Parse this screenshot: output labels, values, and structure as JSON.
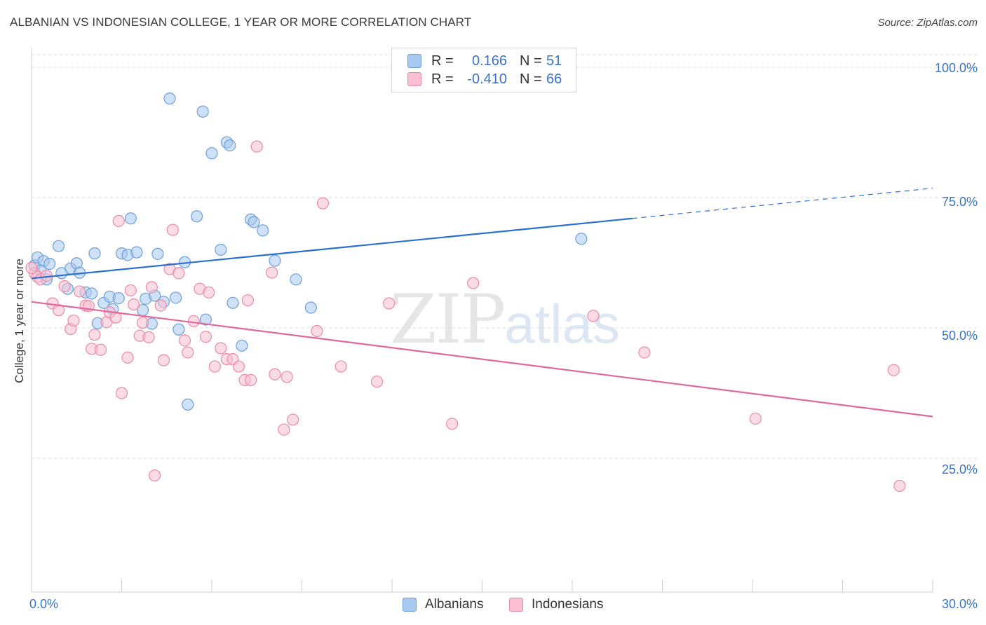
{
  "title": "ALBANIAN VS INDONESIAN COLLEGE, 1 YEAR OR MORE CORRELATION CHART",
  "source": "Source: ZipAtlas.com",
  "watermark": {
    "zip": "ZIP",
    "atlas": "atlas"
  },
  "legend_top": {
    "rows": [
      {
        "r_label": "R =",
        "r_value": "0.166",
        "n_label": "N =",
        "n_value": "51",
        "color": "#a8c8ef",
        "border": "#6f9fd8"
      },
      {
        "r_label": "R =",
        "r_value": "-0.410",
        "n_label": "N =",
        "n_value": "66",
        "color": "#f7bfd0",
        "border": "#e98aa8"
      }
    ]
  },
  "legend_bottom": [
    {
      "label": "Albanians",
      "color": "#a8c8ef",
      "border": "#6f9fd8"
    },
    {
      "label": "Indonesians",
      "color": "#f7bfd0",
      "border": "#e98aa8"
    }
  ],
  "chart_data": {
    "type": "scatter",
    "title": "ALBANIAN VS INDONESIAN COLLEGE, 1 YEAR OR MORE CORRELATION CHART",
    "ylabel": "College, 1 year or more",
    "xlabel": "",
    "xlim": [
      0,
      30
    ],
    "ylim": [
      0,
      105
    ],
    "x_tick_labels": [
      "0.0%",
      "30.0%"
    ],
    "y_ticks": [
      25,
      50,
      75,
      100
    ],
    "y_tick_labels": [
      "25.0%",
      "50.0%",
      "75.0%",
      "100.0%"
    ],
    "grid": true,
    "series": [
      {
        "name": "Albanians",
        "color": "#6f9fd8",
        "fill": "#a8c8ef",
        "trend_color": "#2b6fcf",
        "trend": {
          "x0": 0,
          "y0": 59.5,
          "x1": 20,
          "y1": 71,
          "x_ext": 30,
          "y_ext": 76.8
        },
        "points": [
          [
            0.1,
            62.0
          ],
          [
            0.2,
            63.5
          ],
          [
            0.4,
            62.8
          ],
          [
            0.5,
            59.3
          ],
          [
            0.6,
            62.3
          ],
          [
            0.9,
            65.7
          ],
          [
            1.0,
            60.5
          ],
          [
            1.2,
            57.5
          ],
          [
            1.3,
            61.4
          ],
          [
            1.5,
            62.4
          ],
          [
            1.6,
            60.6
          ],
          [
            1.8,
            56.8
          ],
          [
            2.0,
            56.6
          ],
          [
            2.1,
            64.3
          ],
          [
            2.2,
            50.9
          ],
          [
            2.4,
            54.8
          ],
          [
            2.6,
            56.0
          ],
          [
            2.7,
            53.6
          ],
          [
            2.9,
            55.7
          ],
          [
            3.0,
            64.3
          ],
          [
            3.2,
            64.0
          ],
          [
            3.3,
            71.0
          ],
          [
            3.5,
            64.5
          ],
          [
            3.7,
            53.4
          ],
          [
            3.8,
            55.6
          ],
          [
            4.0,
            50.8
          ],
          [
            4.1,
            56.2
          ],
          [
            4.2,
            64.2
          ],
          [
            4.4,
            55.0
          ],
          [
            4.6,
            94.0
          ],
          [
            4.8,
            55.8
          ],
          [
            4.9,
            49.7
          ],
          [
            5.1,
            62.6
          ],
          [
            5.2,
            35.3
          ],
          [
            5.5,
            71.4
          ],
          [
            5.7,
            91.5
          ],
          [
            5.8,
            51.6
          ],
          [
            6.0,
            83.5
          ],
          [
            6.3,
            65.0
          ],
          [
            6.5,
            85.6
          ],
          [
            6.6,
            85.0
          ],
          [
            6.7,
            54.8
          ],
          [
            7.0,
            46.6
          ],
          [
            7.3,
            70.8
          ],
          [
            7.4,
            70.3
          ],
          [
            7.7,
            68.7
          ],
          [
            8.1,
            62.9
          ],
          [
            8.8,
            59.3
          ],
          [
            9.3,
            53.9
          ],
          [
            18.3,
            67.1
          ],
          [
            0.3,
            61.0
          ]
        ]
      },
      {
        "name": "Indonesians",
        "color": "#e98aa8",
        "fill": "#f7bfd0",
        "trend_color": "#e0689a",
        "trend": {
          "x0": 0,
          "y0": 55.0,
          "x1": 30,
          "y1": 33.0
        },
        "points": [
          [
            0.1,
            60.5
          ],
          [
            0.2,
            59.8
          ],
          [
            0.3,
            59.3
          ],
          [
            0.5,
            60.0
          ],
          [
            0.7,
            54.7
          ],
          [
            0.9,
            53.4
          ],
          [
            1.1,
            58.0
          ],
          [
            1.3,
            49.8
          ],
          [
            1.4,
            51.4
          ],
          [
            1.6,
            57.0
          ],
          [
            1.8,
            54.3
          ],
          [
            1.9,
            54.2
          ],
          [
            2.0,
            46.0
          ],
          [
            2.1,
            48.7
          ],
          [
            2.3,
            45.8
          ],
          [
            2.5,
            51.1
          ],
          [
            2.6,
            53.0
          ],
          [
            2.8,
            52.0
          ],
          [
            2.9,
            70.5
          ],
          [
            3.0,
            37.5
          ],
          [
            3.2,
            44.3
          ],
          [
            3.3,
            57.2
          ],
          [
            3.4,
            54.5
          ],
          [
            3.6,
            48.5
          ],
          [
            3.7,
            51.0
          ],
          [
            3.9,
            48.2
          ],
          [
            4.0,
            57.8
          ],
          [
            4.1,
            21.7
          ],
          [
            4.3,
            54.3
          ],
          [
            4.4,
            43.8
          ],
          [
            4.6,
            61.3
          ],
          [
            4.7,
            68.8
          ],
          [
            4.9,
            60.5
          ],
          [
            5.1,
            47.6
          ],
          [
            5.2,
            45.3
          ],
          [
            5.4,
            51.3
          ],
          [
            5.6,
            57.5
          ],
          [
            5.8,
            48.3
          ],
          [
            5.9,
            56.8
          ],
          [
            6.1,
            42.6
          ],
          [
            6.3,
            46.1
          ],
          [
            6.5,
            44.0
          ],
          [
            6.7,
            44.0
          ],
          [
            6.9,
            42.6
          ],
          [
            7.1,
            40.0
          ],
          [
            7.2,
            55.3
          ],
          [
            7.3,
            40.0
          ],
          [
            7.5,
            84.8
          ],
          [
            8.0,
            60.6
          ],
          [
            8.1,
            41.1
          ],
          [
            8.4,
            30.5
          ],
          [
            8.5,
            40.6
          ],
          [
            8.7,
            32.4
          ],
          [
            9.5,
            49.4
          ],
          [
            9.7,
            73.9
          ],
          [
            10.3,
            42.6
          ],
          [
            11.5,
            39.7
          ],
          [
            11.9,
            54.7
          ],
          [
            14.0,
            31.6
          ],
          [
            14.7,
            58.6
          ],
          [
            18.7,
            52.3
          ],
          [
            20.4,
            45.3
          ],
          [
            24.1,
            32.6
          ],
          [
            28.7,
            41.9
          ],
          [
            28.9,
            19.7
          ],
          [
            0.0,
            61.5
          ]
        ]
      }
    ]
  }
}
